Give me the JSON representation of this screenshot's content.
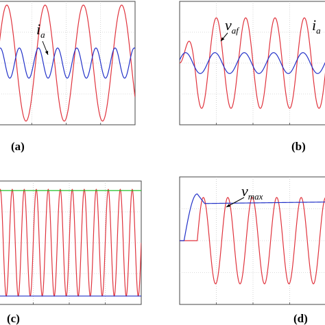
{
  "figure": {
    "panels": [
      {
        "label": "(a)",
        "legend": "",
        "annotations": [
          {
            "var": "i",
            "sub": "a"
          }
        ],
        "x_tick_labels": [
          "",
          "",
          ""
        ],
        "y_tick_labels": [
          "",
          "",
          ""
        ]
      },
      {
        "label": "(b)",
        "legend": "",
        "annotations": [
          {
            "var": "v",
            "sub": "af"
          },
          {
            "var": "i",
            "sub": "a"
          }
        ],
        "x_tick_labels": [
          "",
          "",
          ""
        ],
        "y_tick_labels": [
          "",
          "",
          ""
        ]
      },
      {
        "label": "(c)",
        "legend": "",
        "annotations": [],
        "x_tick_labels": [
          "",
          "",
          ""
        ],
        "y_tick_labels": [
          "",
          "",
          ""
        ]
      },
      {
        "label": "(d)",
        "legend": "",
        "annotations": [
          {
            "var": "v",
            "sub": "max"
          }
        ],
        "x_tick_labels": [
          "",
          "",
          ""
        ],
        "y_tick_labels": [
          "",
          "",
          ""
        ]
      }
    ]
  },
  "chart_data": [
    {
      "type": "line",
      "title": "",
      "xlabel": "",
      "ylabel": "",
      "xlim": [
        0,
        1
      ],
      "ylim": [
        -1,
        1
      ],
      "grid": true,
      "series": [
        {
          "color": "#e0323c",
          "kind": "sine",
          "amplitude": 1.0,
          "cycles": 3.6,
          "phase": 0.0,
          "offset": 0.0,
          "x_start": 0.0
        },
        {
          "color": "#2130c8",
          "kind": "sine",
          "amplitude": 0.26,
          "cycles": 7.2,
          "phase": 0.6,
          "offset": 0.0,
          "x_start": 0.0
        }
      ]
    },
    {
      "type": "line",
      "title": "",
      "xlabel": "",
      "ylabel": "",
      "xlim": [
        0,
        1
      ],
      "ylim": [
        -1,
        1
      ],
      "grid": true,
      "series": [
        {
          "color": "#e0323c",
          "kind": "sine_ramp",
          "amplitude": 0.78,
          "cycles": 5.0,
          "phase": 0.0,
          "offset": 0.0,
          "x_start": 0.0
        },
        {
          "color": "#2130c8",
          "kind": "sine",
          "amplitude": 0.18,
          "cycles": 5.0,
          "phase": 0.3,
          "offset": 0.0,
          "x_start": 0.0
        }
      ]
    },
    {
      "type": "line",
      "title": "",
      "xlabel": "",
      "ylabel": "",
      "xlim": [
        0,
        1
      ],
      "ylim": [
        -1,
        1
      ],
      "grid": true,
      "series": [
        {
          "color": "#e0323c",
          "kind": "sine",
          "amplitude": 0.92,
          "cycles": 12.0,
          "phase": 0.0,
          "offset": 0.0,
          "x_start": 0.0
        },
        {
          "color": "#22c02a",
          "kind": "flat",
          "amplitude": 0.0,
          "cycles": 0,
          "phase": 0.0,
          "offset": 0.9,
          "x_start": 0.0
        },
        {
          "color": "#2130c8",
          "kind": "flat",
          "amplitude": 0.0,
          "cycles": 0,
          "phase": 0.0,
          "offset": -0.92,
          "x_start": 0.0
        }
      ]
    },
    {
      "type": "line",
      "title": "",
      "xlabel": "",
      "ylabel": "",
      "xlim": [
        0,
        1
      ],
      "ylim": [
        -1,
        1
      ],
      "grid": true,
      "series": [
        {
          "color": "#e0323c",
          "kind": "sine",
          "amplitude": 0.72,
          "cycles": 6.0,
          "phase": 0.0,
          "offset": 0.0,
          "x_start": 0.12
        },
        {
          "color": "#2130c8",
          "kind": "envelope",
          "amplitude": 0.0,
          "cycles": 0,
          "phase": 0.0,
          "offset": 0.62,
          "x_start": 0.0
        }
      ]
    }
  ]
}
